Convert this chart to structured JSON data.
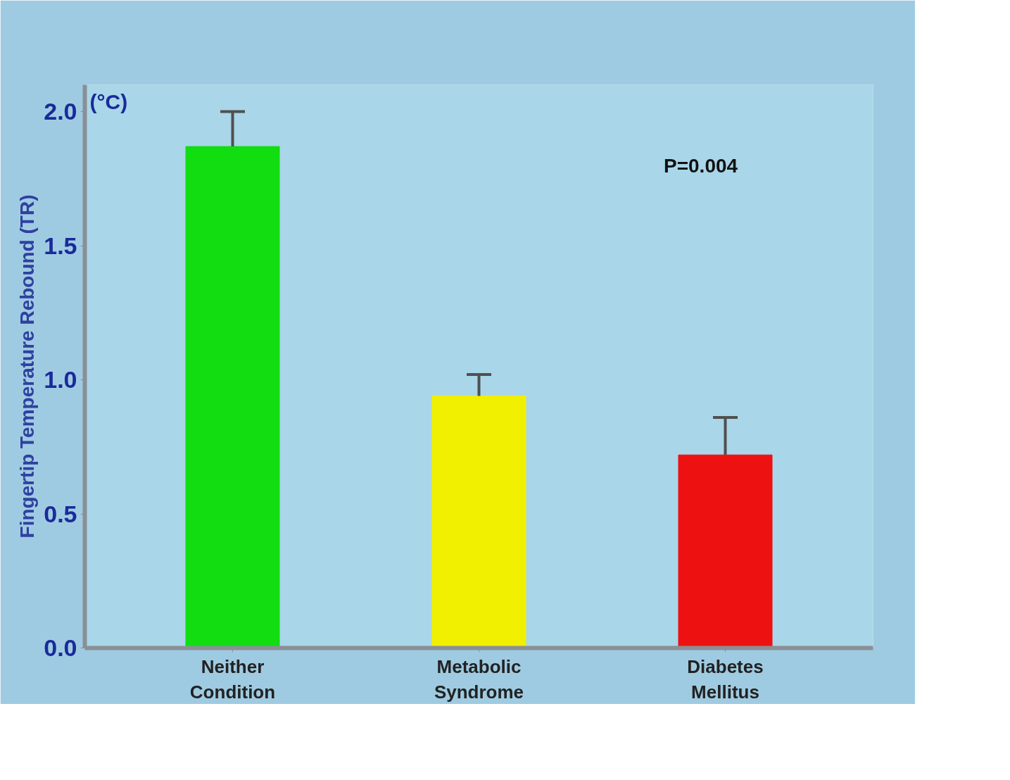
{
  "chart_data": {
    "type": "bar",
    "ylabel": "Fingertip Temperature Rebound (TR)",
    "categories": [
      "Neither\nCondition",
      "Metabolic\nSyndrome",
      "Diabetes\nMellitus"
    ],
    "values": [
      1.87,
      0.94,
      0.72
    ],
    "colors": [
      "#11dd11",
      "#f0f000",
      "#ee1111"
    ],
    "errors": [
      [
        1.87,
        2.0
      ],
      [
        0.94,
        1.02
      ],
      [
        0.72,
        0.86
      ]
    ],
    "ylim": [
      0,
      2.1
    ],
    "yticks": [
      {
        "value": 0,
        "label": "0.0"
      },
      {
        "value": 0.5,
        "label": "0.5"
      },
      {
        "value": 1,
        "label": "1.0"
      },
      {
        "value": 1.5,
        "label": "1.5"
      },
      {
        "value": 2,
        "label": "2.0"
      }
    ],
    "annotations": [
      "(°C)",
      "P=0.004"
    ],
    "grid": false
  }
}
